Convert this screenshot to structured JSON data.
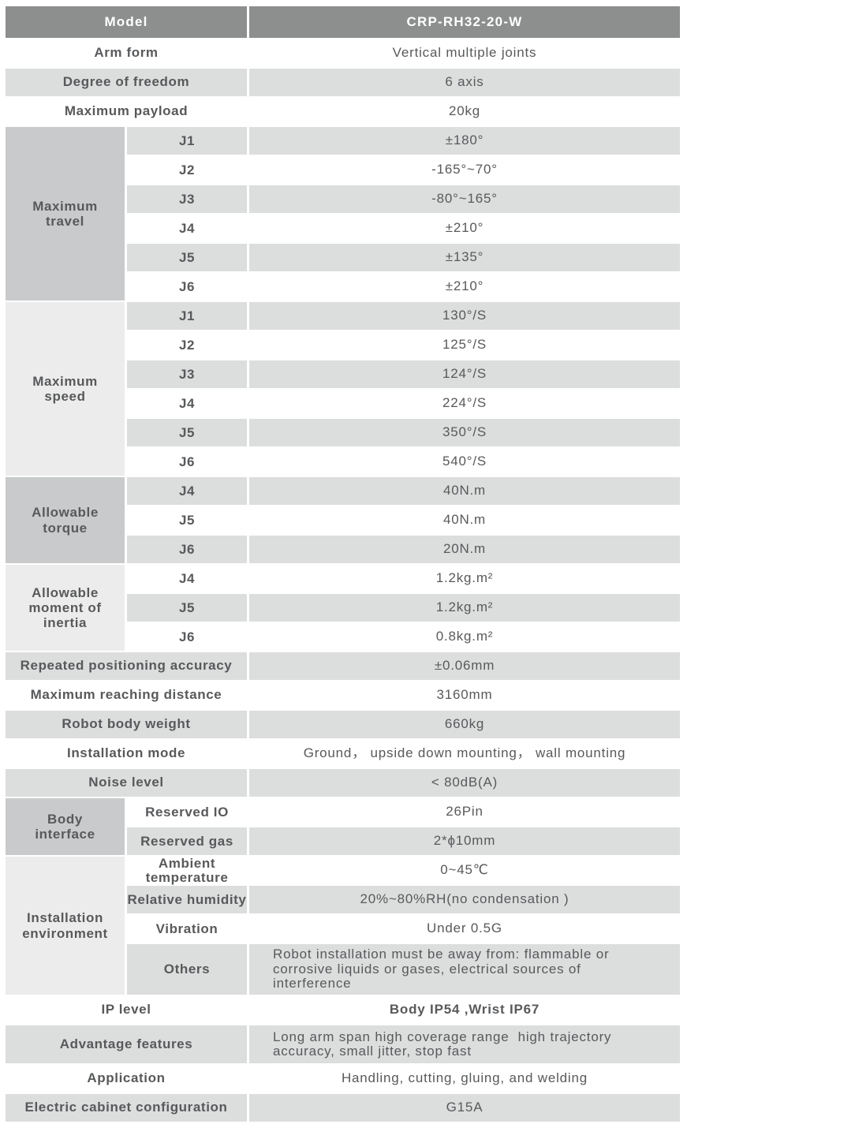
{
  "header": {
    "label": "Model",
    "value": "CRP-RH32-20-W"
  },
  "top": [
    {
      "label": "Arm form",
      "value": "Vertical multiple joints"
    },
    {
      "label": "Degree of freedom",
      "value": "6 axis"
    },
    {
      "label": "Maximum payload",
      "value": "20kg"
    }
  ],
  "sections": {
    "travel": {
      "label": "Maximum travel",
      "rows": [
        {
          "joint": "J1",
          "value": "±180°"
        },
        {
          "joint": "J2",
          "value": "-165°~70°"
        },
        {
          "joint": "J3",
          "value": "-80°~165°"
        },
        {
          "joint": "J4",
          "value": "±210°"
        },
        {
          "joint": "J5",
          "value": "±135°"
        },
        {
          "joint": "J6",
          "value": "±210°"
        }
      ]
    },
    "speed": {
      "label": "Maximum speed",
      "rows": [
        {
          "joint": "J1",
          "value": "130°/S"
        },
        {
          "joint": "J2",
          "value": "125°/S"
        },
        {
          "joint": "J3",
          "value": "124°/S"
        },
        {
          "joint": "J4",
          "value": "224°/S"
        },
        {
          "joint": "J5",
          "value": "350°/S"
        },
        {
          "joint": "J6",
          "value": "540°/S"
        }
      ]
    },
    "torque": {
      "label": "Allowable torque",
      "rows": [
        {
          "joint": "J4",
          "value": "40N.m"
        },
        {
          "joint": "J5",
          "value": "40N.m"
        },
        {
          "joint": "J6",
          "value": "20N.m"
        }
      ]
    },
    "inertia": {
      "label": "Allowable moment of inertia",
      "rows": [
        {
          "joint": "J4",
          "value": "1.2kg.m²"
        },
        {
          "joint": "J5",
          "value": "1.2kg.m²"
        },
        {
          "joint": "J6",
          "value": "0.8kg.m²"
        }
      ]
    },
    "body_interface": {
      "label": "Body interface",
      "rows": [
        {
          "name": "Reserved IO",
          "value": "26Pin"
        },
        {
          "name": "Reserved gas",
          "value": "2*ϕ10mm"
        }
      ]
    },
    "environment": {
      "label": "Installation environment",
      "rows": [
        {
          "name": "Ambient temperature",
          "value": "0~45℃"
        },
        {
          "name": "Relative humidity",
          "value": "20%~80%RH(no condensation )"
        },
        {
          "name": "Vibration",
          "value": "Under 0.5G"
        },
        {
          "name": "Others",
          "value": "Robot installation must be away from: flammable or corrosive liquids or gases, electrical sources of interference"
        }
      ]
    }
  },
  "mid": [
    {
      "label": "Repeated positioning accuracy",
      "value": "±0.06mm"
    },
    {
      "label": "Maximum reaching distance",
      "value": "3160mm"
    },
    {
      "label": "Robot body weight",
      "value": "660kg"
    },
    {
      "label": "Installation mode",
      "value": "Ground， upside down mounting， wall mounting"
    },
    {
      "label": "Noise level",
      "value": "< 80dB(A)"
    }
  ],
  "bottom": [
    {
      "label": "IP level",
      "value": "Body IP54 ,Wrist IP67"
    },
    {
      "label": "Advantage features",
      "value": "Long arm span high coverage range  high trajectory accuracy, small jitter, stop fast"
    },
    {
      "label": "Application",
      "value": "Handling, cutting, gluing, and welding"
    },
    {
      "label": "Electric cabinet configuration",
      "value": "G15A"
    }
  ],
  "colors": {
    "header_bg": "#8d8e8e",
    "header_text": "#ffffff",
    "row_alt_bg": "#dcdddd",
    "group_dark_bg": "#c8cacb",
    "group_light_bg": "#ececec",
    "text": "#58595b"
  }
}
